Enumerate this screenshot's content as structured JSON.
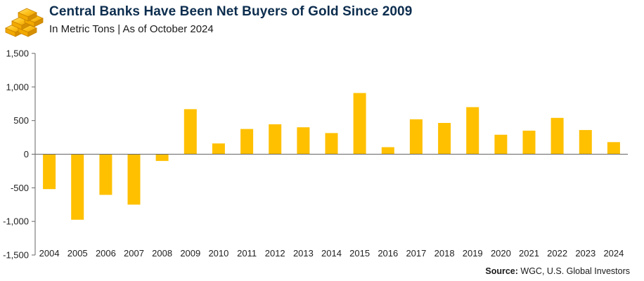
{
  "header": {
    "title": "Central Banks Have Been Net Buyers of Gold Since 2009",
    "subtitle": "In Metric Tons | As of October 2024",
    "logo_icon": "gold-bars-icon"
  },
  "footer": {
    "source_label": "Source:",
    "source_text": "WGC, U.S. Global Investors"
  },
  "colors": {
    "bar": "#FFC000",
    "title": "#0c2d4e",
    "axis": "#666666"
  },
  "chart_data": {
    "type": "bar",
    "title": "Central Banks Have Been Net Buyers of Gold Since 2009",
    "subtitle": "In Metric Tons | As of October 2024",
    "xlabel": "",
    "ylabel": "",
    "ylim": [
      -1500,
      1500
    ],
    "yticks": [
      1500,
      1000,
      500,
      0,
      -500,
      -1000,
      -1500
    ],
    "ytick_labels": [
      "1,500",
      "1,000",
      "500",
      "0",
      "-500",
      "-1,000",
      "-1,500"
    ],
    "grid": false,
    "categories": [
      "2004",
      "2005",
      "2006",
      "2007",
      "2008",
      "2009",
      "2010",
      "2011",
      "2012",
      "2013",
      "2014",
      "2015",
      "2016",
      "2017",
      "2018",
      "2019",
      "2020",
      "2021",
      "2022",
      "2023",
      "2024"
    ],
    "values": [
      -520,
      -975,
      -605,
      -750,
      -100,
      670,
      160,
      375,
      445,
      400,
      315,
      910,
      105,
      520,
      465,
      700,
      290,
      350,
      540,
      360,
      180
    ]
  }
}
